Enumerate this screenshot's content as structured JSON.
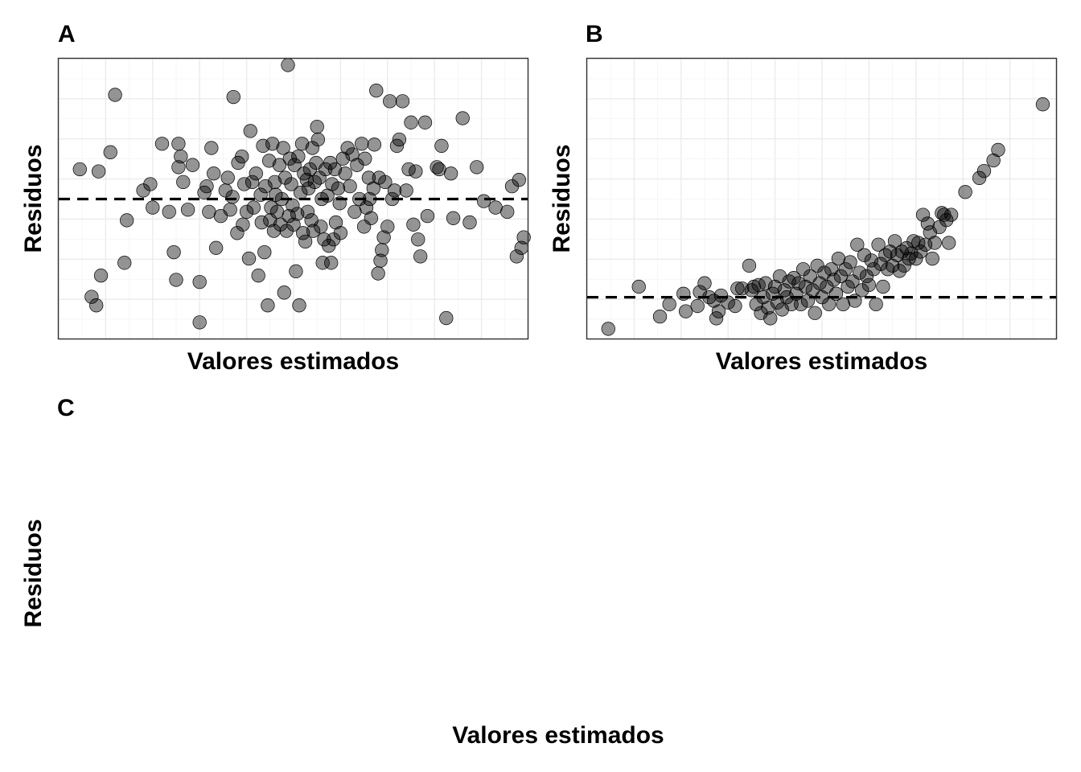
{
  "chart_data": [
    {
      "type": "scatter",
      "tag": "A",
      "xlabel": "Valores estimados",
      "ylabel": "Residuos",
      "xlim": [
        0,
        10
      ],
      "ylim": [
        -3.3,
        3.3
      ],
      "grid": true,
      "hline": 0,
      "points": [
        [
          0.45,
          0.7
        ],
        [
          0.85,
          0.65
        ],
        [
          1.2,
          2.45
        ],
        [
          1.1,
          1.1
        ],
        [
          0.7,
          -2.3
        ],
        [
          0.9,
          -1.8
        ],
        [
          0.8,
          -2.5
        ],
        [
          1.45,
          -0.5
        ],
        [
          1.4,
          -1.5
        ],
        [
          1.8,
          0.2
        ],
        [
          1.95,
          0.35
        ],
        [
          2.0,
          -0.2
        ],
        [
          2.2,
          1.3
        ],
        [
          2.35,
          -0.3
        ],
        [
          2.45,
          -1.25
        ],
        [
          2.55,
          0.75
        ],
        [
          2.6,
          1.0
        ],
        [
          2.65,
          0.4
        ],
        [
          2.75,
          -0.25
        ],
        [
          2.55,
          1.3
        ],
        [
          2.5,
          -1.9
        ],
        [
          3.0,
          -1.95
        ],
        [
          2.85,
          0.8
        ],
        [
          3.15,
          0.3
        ],
        [
          3.0,
          -2.9
        ],
        [
          3.1,
          0.15
        ],
        [
          3.25,
          1.2
        ],
        [
          3.2,
          -0.3
        ],
        [
          3.3,
          0.6
        ],
        [
          3.35,
          -1.15
        ],
        [
          3.45,
          -0.4
        ],
        [
          3.55,
          0.2
        ],
        [
          3.6,
          0.5
        ],
        [
          3.65,
          -0.25
        ],
        [
          3.7,
          0.05
        ],
        [
          3.72,
          2.4
        ],
        [
          3.8,
          -0.8
        ],
        [
          3.82,
          0.85
        ],
        [
          3.9,
          1.0
        ],
        [
          3.92,
          -0.6
        ],
        [
          3.95,
          0.35
        ],
        [
          4.0,
          -0.3
        ],
        [
          4.05,
          -1.4
        ],
        [
          4.08,
          1.6
        ],
        [
          4.12,
          0.4
        ],
        [
          4.15,
          -0.2
        ],
        [
          4.2,
          0.6
        ],
        [
          4.25,
          -1.8
        ],
        [
          4.3,
          0.1
        ],
        [
          4.32,
          -0.55
        ],
        [
          4.35,
          1.25
        ],
        [
          4.38,
          -1.25
        ],
        [
          4.4,
          0.3
        ],
        [
          4.45,
          -2.5
        ],
        [
          4.48,
          0.9
        ],
        [
          4.5,
          -0.5
        ],
        [
          4.52,
          -0.2
        ],
        [
          4.55,
          1.3
        ],
        [
          4.58,
          -0.75
        ],
        [
          4.6,
          0.4
        ],
        [
          4.62,
          0.1
        ],
        [
          4.65,
          -0.3
        ],
        [
          4.7,
          0.8
        ],
        [
          4.72,
          -0.6
        ],
        [
          4.75,
          0.0
        ],
        [
          4.78,
          1.2
        ],
        [
          4.8,
          -2.2
        ],
        [
          4.82,
          0.5
        ],
        [
          4.85,
          -0.75
        ],
        [
          4.88,
          3.15
        ],
        [
          4.9,
          -0.4
        ],
        [
          4.92,
          0.95
        ],
        [
          4.95,
          0.35
        ],
        [
          4.98,
          -0.15
        ],
        [
          5.0,
          -0.6
        ],
        [
          5.02,
          0.8
        ],
        [
          5.05,
          -1.7
        ],
        [
          5.08,
          -0.35
        ],
        [
          5.1,
          1.0
        ],
        [
          5.12,
          -2.5
        ],
        [
          5.15,
          0.15
        ],
        [
          5.18,
          1.3
        ],
        [
          5.2,
          -0.8
        ],
        [
          5.22,
          0.6
        ],
        [
          5.25,
          -1.0
        ],
        [
          5.28,
          0.45
        ],
        [
          5.3,
          -0.3
        ],
        [
          5.32,
          0.25
        ],
        [
          5.35,
          0.7
        ],
        [
          5.38,
          -0.5
        ],
        [
          5.4,
          1.2
        ],
        [
          5.42,
          -0.75
        ],
        [
          5.45,
          0.4
        ],
        [
          5.48,
          0.85
        ],
        [
          5.5,
          1.7
        ],
        [
          5.52,
          1.4
        ],
        [
          5.55,
          0.5
        ],
        [
          5.58,
          -0.65
        ],
        [
          5.6,
          0.0
        ],
        [
          5.62,
          -1.5
        ],
        [
          5.65,
          -0.95
        ],
        [
          5.68,
          0.7
        ],
        [
          5.72,
          0.08
        ],
        [
          5.75,
          -1.1
        ],
        [
          5.78,
          0.85
        ],
        [
          5.8,
          -1.5
        ],
        [
          5.82,
          0.35
        ],
        [
          5.85,
          -0.95
        ],
        [
          5.88,
          0.7
        ],
        [
          5.9,
          -0.55
        ],
        [
          5.95,
          0.25
        ],
        [
          5.98,
          -0.1
        ],
        [
          6.0,
          -0.8
        ],
        [
          6.05,
          0.95
        ],
        [
          6.1,
          0.6
        ],
        [
          6.15,
          1.2
        ],
        [
          6.2,
          0.3
        ],
        [
          6.25,
          1.05
        ],
        [
          6.3,
          -0.3
        ],
        [
          6.35,
          0.8
        ],
        [
          6.4,
          0.0
        ],
        [
          6.45,
          1.3
        ],
        [
          6.5,
          -0.65
        ],
        [
          6.52,
          0.95
        ],
        [
          6.55,
          -0.2
        ],
        [
          6.6,
          0.5
        ],
        [
          6.62,
          0.0
        ],
        [
          6.65,
          -0.45
        ],
        [
          6.7,
          0.25
        ],
        [
          6.72,
          1.28
        ],
        [
          6.76,
          2.55
        ],
        [
          6.8,
          -1.75
        ],
        [
          6.82,
          0.5
        ],
        [
          6.85,
          -1.45
        ],
        [
          6.88,
          -1.2
        ],
        [
          6.92,
          -0.9
        ],
        [
          6.95,
          0.4
        ],
        [
          7.0,
          -0.65
        ],
        [
          7.05,
          2.3
        ],
        [
          7.1,
          0.0
        ],
        [
          7.15,
          0.2
        ],
        [
          7.2,
          1.25
        ],
        [
          7.25,
          1.4
        ],
        [
          7.32,
          2.3
        ],
        [
          7.4,
          0.2
        ],
        [
          7.45,
          0.7
        ],
        [
          7.5,
          1.8
        ],
        [
          7.55,
          -0.6
        ],
        [
          7.6,
          0.65
        ],
        [
          7.65,
          -0.95
        ],
        [
          7.7,
          -1.35
        ],
        [
          7.8,
          1.8
        ],
        [
          7.85,
          -0.4
        ],
        [
          8.05,
          0.75
        ],
        [
          8.1,
          0.7
        ],
        [
          8.15,
          1.25
        ],
        [
          8.25,
          -2.8
        ],
        [
          8.35,
          0.6
        ],
        [
          8.4,
          -0.45
        ],
        [
          8.6,
          1.9
        ],
        [
          8.75,
          -0.55
        ],
        [
          8.9,
          0.75
        ],
        [
          9.05,
          -0.05
        ],
        [
          9.3,
          -0.2
        ],
        [
          9.55,
          -0.3
        ],
        [
          9.65,
          0.3
        ],
        [
          9.75,
          -1.35
        ],
        [
          9.8,
          0.45
        ],
        [
          9.85,
          -1.15
        ],
        [
          9.9,
          -0.9
        ]
      ]
    },
    {
      "type": "scatter",
      "tag": "B",
      "xlabel": "Valores estimados",
      "ylabel": "Residuos",
      "xlim": [
        0,
        10
      ],
      "ylim": [
        -1.2,
        6.8
      ],
      "grid": true,
      "hline": 0,
      "points": [
        [
          0.45,
          -0.9
        ],
        [
          1.1,
          0.3
        ],
        [
          1.55,
          -0.55
        ],
        [
          1.75,
          -0.2
        ],
        [
          2.05,
          0.1
        ],
        [
          2.1,
          -0.4
        ],
        [
          2.35,
          -0.25
        ],
        [
          2.4,
          0.15
        ],
        [
          2.5,
          0.4
        ],
        [
          2.6,
          0.0
        ],
        [
          2.7,
          -0.1
        ],
        [
          2.75,
          -0.6
        ],
        [
          2.8,
          -0.4
        ],
        [
          2.85,
          0.05
        ],
        [
          3.0,
          -0.15
        ],
        [
          3.15,
          -0.25
        ],
        [
          3.2,
          0.25
        ],
        [
          3.3,
          0.25
        ],
        [
          3.45,
          0.9
        ],
        [
          3.5,
          0.2
        ],
        [
          3.55,
          0.3
        ],
        [
          3.6,
          -0.2
        ],
        [
          3.65,
          0.35
        ],
        [
          3.7,
          -0.45
        ],
        [
          3.75,
          0.0
        ],
        [
          3.8,
          0.4
        ],
        [
          3.85,
          -0.3
        ],
        [
          3.9,
          -0.6
        ],
        [
          3.95,
          0.1
        ],
        [
          4.0,
          0.3
        ],
        [
          4.05,
          -0.15
        ],
        [
          4.1,
          0.6
        ],
        [
          4.15,
          -0.35
        ],
        [
          4.2,
          0.2
        ],
        [
          4.25,
          0.0
        ],
        [
          4.3,
          0.45
        ],
        [
          4.35,
          -0.2
        ],
        [
          4.4,
          0.55
        ],
        [
          4.45,
          0.1
        ],
        [
          4.5,
          0.4
        ],
        [
          4.55,
          -0.2
        ],
        [
          4.6,
          0.8
        ],
        [
          4.65,
          0.3
        ],
        [
          4.7,
          -0.1
        ],
        [
          4.75,
          0.6
        ],
        [
          4.8,
          0.2
        ],
        [
          4.85,
          -0.45
        ],
        [
          4.9,
          0.9
        ],
        [
          4.95,
          0.4
        ],
        [
          5.0,
          0.0
        ],
        [
          5.05,
          0.7
        ],
        [
          5.1,
          0.3
        ],
        [
          5.15,
          -0.2
        ],
        [
          5.2,
          0.8
        ],
        [
          5.25,
          0.5
        ],
        [
          5.3,
          0.1
        ],
        [
          5.35,
          1.1
        ],
        [
          5.4,
          0.6
        ],
        [
          5.45,
          -0.2
        ],
        [
          5.5,
          0.8
        ],
        [
          5.55,
          0.3
        ],
        [
          5.6,
          1.0
        ],
        [
          5.65,
          0.45
        ],
        [
          5.7,
          -0.1
        ],
        [
          5.75,
          1.5
        ],
        [
          5.8,
          0.7
        ],
        [
          5.85,
          0.2
        ],
        [
          5.9,
          1.2
        ],
        [
          5.95,
          0.6
        ],
        [
          6.0,
          0.35
        ],
        [
          6.05,
          1.05
        ],
        [
          6.1,
          0.8
        ],
        [
          6.15,
          -0.2
        ],
        [
          6.2,
          1.5
        ],
        [
          6.25,
          0.95
        ],
        [
          6.3,
          0.3
        ],
        [
          6.35,
          1.2
        ],
        [
          6.4,
          0.8
        ],
        [
          6.45,
          1.3
        ],
        [
          6.5,
          0.9
        ],
        [
          6.55,
          1.6
        ],
        [
          6.6,
          1.2
        ],
        [
          6.65,
          0.75
        ],
        [
          6.7,
          1.3
        ],
        [
          6.75,
          0.9
        ],
        [
          6.8,
          1.4
        ],
        [
          6.85,
          1.1
        ],
        [
          6.9,
          1.25
        ],
        [
          6.95,
          1.6
        ],
        [
          7.0,
          1.1
        ],
        [
          7.05,
          1.55
        ],
        [
          7.1,
          1.3
        ],
        [
          7.15,
          2.35
        ],
        [
          7.2,
          1.5
        ],
        [
          7.25,
          2.1
        ],
        [
          7.3,
          1.85
        ],
        [
          7.35,
          1.1
        ],
        [
          7.4,
          1.55
        ],
        [
          7.5,
          2.0
        ],
        [
          7.55,
          2.4
        ],
        [
          7.6,
          2.35
        ],
        [
          7.65,
          2.2
        ],
        [
          7.7,
          1.55
        ],
        [
          7.75,
          2.35
        ],
        [
          8.05,
          3.0
        ],
        [
          8.35,
          3.4
        ],
        [
          8.45,
          3.6
        ],
        [
          8.65,
          3.9
        ],
        [
          8.75,
          4.2
        ],
        [
          9.7,
          5.5
        ]
      ]
    },
    {
      "type": "scatter",
      "tag": "C",
      "xlabel": "Valores estimados",
      "ylabel": "Residuos",
      "points": []
    }
  ]
}
